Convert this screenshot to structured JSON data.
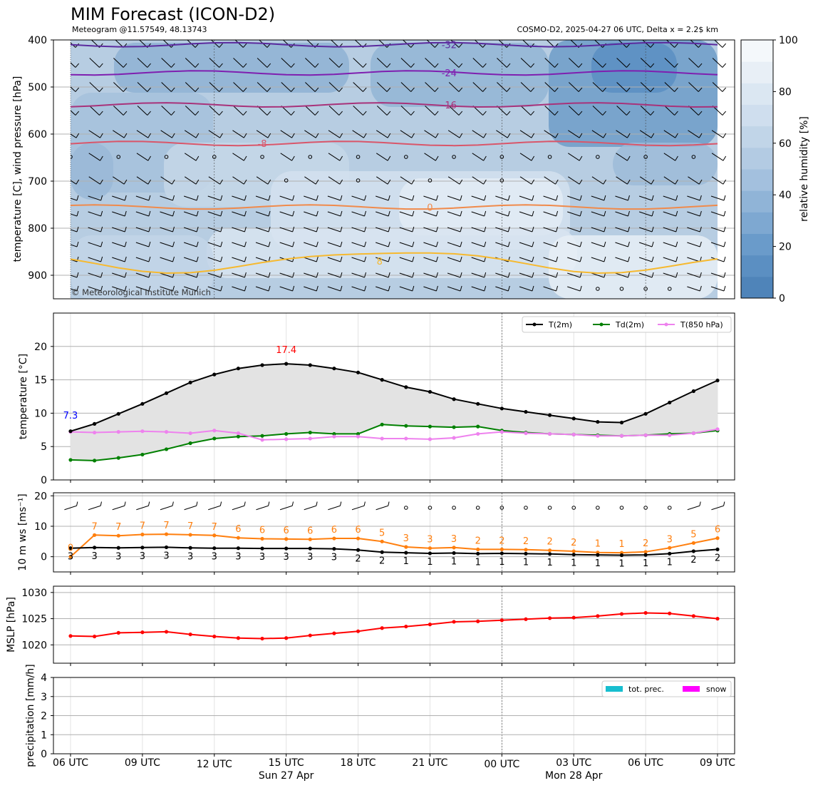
{
  "header": {
    "title": "MIM Forecast (ICON-D2)",
    "subtitle_left": "Meteogram @11.57549, 48.13743",
    "subtitle_right": "COSMO-D2, 2025-04-27 06 UTC, Delta x = 2.2$ km"
  },
  "colors": {
    "t2m": "#000000",
    "td2m": "#008000",
    "t850": "#ee82ee",
    "ws": "#ff7f0e",
    "mslp": "#ff0000",
    "precip": "#17becf",
    "snow": "#ff00ff",
    "min_label": "#0000ff",
    "max_label": "#ff0000"
  },
  "time_axis": {
    "ticks": [
      {
        "h": 0,
        "label": "06 UTC"
      },
      {
        "h": 3,
        "label": "09 UTC"
      },
      {
        "h": 6,
        "label": "12 UTC"
      },
      {
        "h": 9,
        "label": "15 UTC"
      },
      {
        "h": 12,
        "label": "18 UTC"
      },
      {
        "h": 15,
        "label": "21 UTC"
      },
      {
        "h": 18,
        "label": "00 UTC"
      },
      {
        "h": 21,
        "label": "03 UTC"
      },
      {
        "h": 24,
        "label": "06 UTC"
      },
      {
        "h": 27,
        "label": "09 UTC"
      }
    ],
    "date_labels": [
      {
        "h": 9,
        "label": "Sun 27 Apr"
      },
      {
        "h": 21,
        "label": "Mon 28 Apr"
      }
    ]
  },
  "chart_data": [
    {
      "type": "heatmap",
      "panel": "upper-air",
      "ylabel": "temperature [C], wind pressure [hPa]",
      "y_ticks": [
        400,
        500,
        600,
        700,
        800,
        900
      ],
      "ylim": [
        950,
        400
      ],
      "colorbar": {
        "label": "relative humidity [%]",
        "ticks": [
          0,
          20,
          40,
          60,
          80,
          100
        ]
      },
      "isotherms": [
        {
          "label": "-32",
          "p": 410,
          "color": "#5b2a9e"
        },
        {
          "label": "-24",
          "p": 470,
          "color": "#7f1fb0"
        },
        {
          "label": "-16",
          "p": 538,
          "color": "#a8327a"
        },
        {
          "label": "-8",
          "p": 620,
          "color": "#d9566a"
        },
        {
          "label": "0",
          "p": 755,
          "color": "#f08a4b"
        },
        {
          "label": "8",
          "p": 870,
          "color": "#f6b92f"
        }
      ],
      "copyright": "© Meteorological Institute Munich"
    },
    {
      "type": "line",
      "panel": "temperature",
      "ylabel": "temperature [$^\\circ$C]",
      "y_ticks": [
        0,
        5,
        10,
        15,
        20
      ],
      "ylim": [
        0,
        25
      ],
      "x": [
        0,
        1,
        2,
        3,
        4,
        5,
        6,
        7,
        8,
        9,
        10,
        11,
        12,
        13,
        14,
        15,
        16,
        17,
        18,
        19,
        20,
        21,
        22,
        23,
        24,
        25,
        26,
        27
      ],
      "series": [
        {
          "name": "T(2m)",
          "values": [
            7.3,
            8.4,
            9.9,
            11.4,
            13.0,
            14.6,
            15.8,
            16.7,
            17.2,
            17.4,
            17.2,
            16.7,
            16.1,
            15.0,
            13.9,
            13.2,
            12.1,
            11.4,
            10.7,
            10.2,
            9.7,
            9.2,
            8.7,
            8.6,
            9.9,
            11.6,
            13.3,
            14.9
          ]
        },
        {
          "name": "Td(2m)",
          "values": [
            3.0,
            2.9,
            3.3,
            3.8,
            4.6,
            5.5,
            6.2,
            6.5,
            6.6,
            6.9,
            7.1,
            6.9,
            6.9,
            8.3,
            8.1,
            8.0,
            7.9,
            8.0,
            7.4,
            7.1,
            6.9,
            6.8,
            6.7,
            6.6,
            6.7,
            6.9,
            7.0,
            7.4
          ]
        },
        {
          "name": "T(850 hPa)",
          "values": [
            7.2,
            7.1,
            7.2,
            7.3,
            7.2,
            7.0,
            7.4,
            7.0,
            6.0,
            6.1,
            6.2,
            6.5,
            6.5,
            6.2,
            6.2,
            6.1,
            6.3,
            6.9,
            7.2,
            7.0,
            6.9,
            6.8,
            6.6,
            6.6,
            6.7,
            6.7,
            7.0,
            7.6
          ]
        }
      ],
      "annotations": [
        {
          "text": "7.3",
          "h": 0,
          "v": 9.2,
          "kind": "min"
        },
        {
          "text": "17.4",
          "h": 9,
          "v": 19.0,
          "kind": "max"
        }
      ]
    },
    {
      "type": "line",
      "panel": "wind",
      "ylabel": "10 m ws [ms$^{-1}$]",
      "y_ticks": [
        0,
        10,
        20
      ],
      "ylim": [
        -5,
        21
      ],
      "x": [
        0,
        1,
        2,
        3,
        4,
        5,
        6,
        7,
        8,
        9,
        10,
        11,
        12,
        13,
        14,
        15,
        16,
        17,
        18,
        19,
        20,
        21,
        22,
        23,
        24,
        25,
        26,
        27
      ],
      "series": [
        {
          "name": "gust",
          "values": [
            0,
            7.1,
            6.9,
            7.3,
            7.4,
            7.2,
            7.0,
            6.2,
            5.9,
            5.8,
            5.7,
            6.0,
            6.0,
            5.0,
            3.2,
            2.8,
            3.0,
            2.4,
            2.4,
            2.3,
            2.1,
            1.8,
            1.4,
            1.3,
            1.6,
            2.9,
            4.5,
            6.1
          ]
        },
        {
          "name": "mean",
          "values": [
            2.8,
            3.0,
            2.9,
            3.0,
            3.1,
            2.9,
            2.8,
            2.8,
            2.7,
            2.7,
            2.7,
            2.6,
            2.2,
            1.5,
            1.3,
            1.1,
            1.2,
            1.0,
            1.1,
            1.0,
            0.9,
            0.7,
            0.6,
            0.5,
            0.6,
            1.0,
            1.8,
            2.4
          ]
        }
      ],
      "gust_labels": [
        "0",
        "7",
        "7",
        "7",
        "7",
        "7",
        "7",
        "6",
        "6",
        "6",
        "6",
        "6",
        "6",
        "5",
        "3",
        "3",
        "3",
        "2",
        "2",
        "2",
        "2",
        "2",
        "1",
        "1",
        "2",
        "3",
        "5",
        "6"
      ],
      "mean_labels": [
        "3",
        "3",
        "3",
        "3",
        "3",
        "3",
        "3",
        "3",
        "3",
        "3",
        "3",
        "3",
        "2",
        "2",
        "1",
        "1",
        "1",
        "1",
        "1",
        "1",
        "1",
        "1",
        "1",
        "1",
        "1",
        "1",
        "2",
        "2"
      ]
    },
    {
      "type": "line",
      "panel": "mslp",
      "ylabel": "MSLP [hPa]",
      "y_ticks": [
        1020,
        1025,
        1030
      ],
      "ylim": [
        1016.5,
        1031.2
      ],
      "x": [
        0,
        1,
        2,
        3,
        4,
        5,
        6,
        7,
        8,
        9,
        10,
        11,
        12,
        13,
        14,
        15,
        16,
        17,
        18,
        19,
        20,
        21,
        22,
        23,
        24,
        25,
        26,
        27
      ],
      "series": [
        {
          "name": "MSLP",
          "values": [
            1021.7,
            1021.6,
            1022.3,
            1022.4,
            1022.5,
            1022.0,
            1021.6,
            1021.3,
            1021.2,
            1021.3,
            1021.8,
            1022.2,
            1022.6,
            1023.2,
            1023.5,
            1023.9,
            1024.4,
            1024.5,
            1024.7,
            1024.9,
            1025.1,
            1025.2,
            1025.5,
            1025.9,
            1026.1,
            1026.0,
            1025.5,
            1025.0
          ]
        }
      ]
    },
    {
      "type": "bar",
      "panel": "precipitation",
      "ylabel": "precipitation [mm/h]",
      "y_ticks": [
        0,
        1,
        2,
        3,
        4
      ],
      "ylim": [
        0,
        4
      ],
      "series": [
        {
          "name": "tot. prec.",
          "values": [
            0,
            0,
            0,
            0,
            0,
            0,
            0,
            0,
            0,
            0,
            0,
            0,
            0,
            0,
            0,
            0,
            0,
            0,
            0,
            0,
            0,
            0,
            0,
            0,
            0,
            0,
            0,
            0
          ]
        },
        {
          "name": "snow",
          "values": [
            0,
            0,
            0,
            0,
            0,
            0,
            0,
            0,
            0,
            0,
            0,
            0,
            0,
            0,
            0,
            0,
            0,
            0,
            0,
            0,
            0,
            0,
            0,
            0,
            0,
            0,
            0,
            0
          ]
        }
      ]
    }
  ]
}
